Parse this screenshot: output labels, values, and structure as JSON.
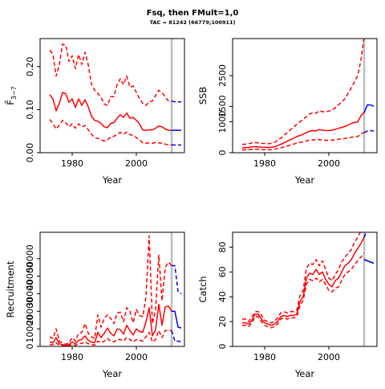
{
  "title": "Fsq, then FMult=1,0",
  "subtitle": "TAC = 81242 (66779;100911)",
  "colors": {
    "observed": "#ff0000",
    "forecast": "#0000ff",
    "divider": "#bebebe",
    "axis": "#000000"
  },
  "chart_data": [
    {
      "id": "fbar",
      "type": "line",
      "xlabel": "Year",
      "ylabel": "F̄",
      "ylabel_sub": "3−7",
      "xlim": [
        1970,
        2015
      ],
      "ylim": [
        0,
        0.265
      ],
      "xticks": [
        1980,
        2000
      ],
      "yticks": [
        0.0,
        0.1,
        0.2
      ],
      "ytick_labels": [
        "0.00",
        "0.10",
        "0.20"
      ],
      "divider_x": 2011,
      "observed": {
        "x": [
          1973,
          1974,
          1975,
          1976,
          1977,
          1978,
          1979,
          1980,
          1981,
          1982,
          1983,
          1984,
          1985,
          1986,
          1987,
          1988,
          1989,
          1990,
          1991,
          1992,
          1993,
          1994,
          1995,
          1996,
          1997,
          1998,
          1999,
          2000,
          2001,
          2002,
          2003,
          2004,
          2005,
          2006,
          2007,
          2008,
          2009,
          2010,
          2011
        ],
        "mid": [
          0.135,
          0.125,
          0.097,
          0.115,
          0.14,
          0.137,
          0.117,
          0.125,
          0.105,
          0.125,
          0.11,
          0.123,
          0.107,
          0.085,
          0.075,
          0.073,
          0.068,
          0.06,
          0.058,
          0.068,
          0.07,
          0.08,
          0.088,
          0.082,
          0.092,
          0.08,
          0.082,
          0.075,
          0.067,
          0.053,
          0.052,
          0.053,
          0.053,
          0.057,
          0.062,
          0.06,
          0.055,
          0.052,
          0.052
        ],
        "lower": [
          0.077,
          0.068,
          0.055,
          0.064,
          0.075,
          0.07,
          0.06,
          0.067,
          0.057,
          0.067,
          0.06,
          0.063,
          0.053,
          0.043,
          0.035,
          0.033,
          0.03,
          0.027,
          0.03,
          0.037,
          0.038,
          0.043,
          0.047,
          0.043,
          0.048,
          0.042,
          0.04,
          0.035,
          0.03,
          0.023,
          0.022,
          0.023,
          0.022,
          0.024,
          0.023,
          0.022,
          0.02,
          0.018,
          0.018
        ],
        "upper": [
          0.238,
          0.228,
          0.178,
          0.205,
          0.252,
          0.25,
          0.212,
          0.225,
          0.195,
          0.228,
          0.205,
          0.233,
          0.205,
          0.16,
          0.145,
          0.138,
          0.128,
          0.113,
          0.11,
          0.13,
          0.13,
          0.158,
          0.172,
          0.158,
          0.178,
          0.152,
          0.155,
          0.14,
          0.125,
          0.115,
          0.11,
          0.118,
          0.12,
          0.133,
          0.145,
          0.14,
          0.13,
          0.12,
          0.12
        ]
      },
      "forecast": {
        "x": [
          2011,
          2012,
          2013,
          2014
        ],
        "mid": [
          0.052,
          0.052,
          0.052,
          0.052
        ],
        "lower": [
          0.018,
          0.018,
          0.018,
          0.018
        ],
        "upper": [
          0.12,
          0.118,
          0.118,
          0.118
        ]
      }
    },
    {
      "id": "ssb",
      "type": "line",
      "xlabel": "Year",
      "ylabel": "SSB",
      "ylim": [
        0,
        3700
      ],
      "xlim": [
        1970,
        2015
      ],
      "xticks": [
        1980,
        2000
      ],
      "yticks": [
        0,
        1000,
        1500,
        2500
      ],
      "ytick_labels": [
        "0",
        "1000",
        "1500",
        "2500"
      ],
      "divider_x": 2011,
      "observed": {
        "x": [
          1973,
          1974,
          1975,
          1976,
          1977,
          1978,
          1979,
          1980,
          1981,
          1982,
          1983,
          1984,
          1985,
          1986,
          1987,
          1988,
          1989,
          1990,
          1991,
          1992,
          1993,
          1994,
          1995,
          1996,
          1997,
          1998,
          1999,
          2000,
          2001,
          2002,
          2003,
          2004,
          2005,
          2006,
          2007,
          2008,
          2009,
          2010,
          2011
        ],
        "mid": [
          160,
          165,
          170,
          190,
          195,
          190,
          180,
          175,
          170,
          175,
          190,
          230,
          270,
          320,
          370,
          420,
          470,
          520,
          560,
          600,
          650,
          700,
          720,
          700,
          750,
          730,
          720,
          720,
          730,
          760,
          790,
          820,
          850,
          900,
          950,
          980,
          1000,
          1200,
          1300
        ],
        "lower": [
          90,
          95,
          100,
          110,
          115,
          110,
          105,
          100,
          95,
          100,
          110,
          135,
          160,
          190,
          220,
          250,
          280,
          310,
          330,
          350,
          380,
          410,
          420,
          400,
          430,
          410,
          400,
          400,
          405,
          420,
          435,
          450,
          460,
          480,
          500,
          510,
          520,
          620,
          650
        ],
        "upper": [
          270,
          275,
          290,
          320,
          330,
          320,
          305,
          300,
          290,
          300,
          330,
          400,
          470,
          560,
          650,
          740,
          830,
          920,
          1000,
          1080,
          1170,
          1250,
          1300,
          1280,
          1360,
          1330,
          1330,
          1350,
          1380,
          1460,
          1550,
          1650,
          1750,
          1930,
          2100,
          2300,
          2500,
          3000,
          3750
        ]
      },
      "forecast": {
        "x": [
          2011,
          2012,
          2013,
          2014
        ],
        "mid": [
          1300,
          1550,
          1550,
          1500
        ],
        "lower": [
          650,
          700,
          720,
          700
        ],
        "upper": [
          3750,
          3850,
          3850,
          3850
        ]
      }
    },
    {
      "id": "recruitment",
      "type": "line",
      "xlabel": "Year",
      "ylabel": "Recruitment",
      "ylim": [
        0,
        65000
      ],
      "xlim": [
        1970,
        2015
      ],
      "xticks": [
        1980,
        2000
      ],
      "yticks": [
        0,
        10000,
        20000,
        30000,
        40000,
        50000
      ],
      "ytick_labels": [
        "0",
        "10000",
        "20000",
        "30000",
        "40000",
        "50000"
      ],
      "divider_x": 2011,
      "observed": {
        "x": [
          1973,
          1974,
          1975,
          1976,
          1977,
          1978,
          1979,
          1980,
          1981,
          1982,
          1983,
          1984,
          1985,
          1986,
          1987,
          1988,
          1989,
          1990,
          1991,
          1992,
          1993,
          1994,
          1995,
          1996,
          1997,
          1998,
          1999,
          2000,
          2001,
          2002,
          2003,
          2004,
          2005,
          2006,
          2007,
          2008,
          2009,
          2010,
          2011
        ],
        "mid": [
          2500,
          2000,
          5000,
          1500,
          1000,
          500,
          1000,
          2500,
          1500,
          3500,
          4000,
          6000,
          3500,
          2500,
          2000,
          8000,
          5000,
          7500,
          10500,
          7500,
          6000,
          10000,
          9500,
          7000,
          12000,
          9000,
          6500,
          10000,
          8500,
          8000,
          14000,
          22000,
          6000,
          9500,
          24000,
          12000,
          22500,
          23000,
          20000
        ],
        "lower": [
          1000,
          900,
          2000,
          600,
          400,
          200,
          400,
          1000,
          600,
          1500,
          1700,
          2500,
          1500,
          1000,
          800,
          3000,
          2000,
          3000,
          4500,
          3000,
          2500,
          4000,
          4000,
          3000,
          5000,
          4000,
          2500,
          4000,
          3500,
          3000,
          5500,
          8000,
          2500,
          4000,
          9000,
          5000,
          9000,
          9000,
          9000
        ],
        "upper": [
          5500,
          4500,
          10000,
          3000,
          2000,
          1200,
          2000,
          5000,
          3000,
          7500,
          8000,
          13000,
          7500,
          5500,
          4500,
          18000,
          11000,
          16000,
          18000,
          16000,
          13000,
          19000,
          19500,
          14000,
          22000,
          20000,
          13500,
          21000,
          17500,
          17000,
          28000,
          63000,
          13000,
          21000,
          52000,
          26000,
          45000,
          48000,
          46000
        ]
      },
      "forecast": {
        "x": [
          2011,
          2012,
          2013,
          2014
        ],
        "mid": [
          20000,
          20000,
          11000,
          10500
        ],
        "lower": [
          9000,
          3000,
          3000,
          2500
        ],
        "upper": [
          46000,
          46000,
          31000,
          30000
        ]
      }
    },
    {
      "id": "catch",
      "type": "line",
      "xlabel": "Year",
      "ylabel": "Catch",
      "ylim": [
        0,
        92
      ],
      "xlim": [
        1970,
        2015
      ],
      "xticks": [
        1980,
        2000
      ],
      "yticks": [
        0,
        20,
        40,
        60,
        80
      ],
      "ytick_labels": [
        "0",
        "20",
        "40",
        "60",
        "80"
      ],
      "divider_x": 2011,
      "observed": {
        "x": [
          1973,
          1974,
          1975,
          1976,
          1977,
          1978,
          1979,
          1980,
          1981,
          1982,
          1983,
          1984,
          1985,
          1986,
          1987,
          1988,
          1989,
          1990,
          1991,
          1992,
          1993,
          1994,
          1995,
          1996,
          1997,
          1998,
          1999,
          2000,
          2001,
          2002,
          2003,
          2004,
          2005,
          2006,
          2007,
          2008,
          2009,
          2010,
          2011
        ],
        "mid": [
          19,
          19,
          18,
          21,
          26,
          26,
          22,
          19,
          18,
          17,
          18,
          20,
          24,
          25,
          24,
          25,
          25,
          26,
          36,
          40,
          55,
          59,
          58,
          62,
          58,
          60,
          54,
          50,
          48,
          53,
          55,
          60,
          65,
          67,
          70,
          75,
          79,
          83,
          88
        ],
        "lower": [
          17,
          17,
          16,
          19,
          24,
          24,
          20,
          17,
          16,
          15,
          16,
          18,
          22,
          23,
          22,
          23,
          23,
          24,
          33,
          37,
          50,
          54,
          53,
          55,
          52,
          54,
          50,
          45,
          44,
          47,
          48,
          53,
          58,
          60,
          62,
          66,
          69,
          72,
          75
        ],
        "upper": [
          22,
          22,
          20,
          24,
          28,
          28,
          25,
          21,
          20,
          19,
          20,
          23,
          27,
          28,
          27,
          28,
          28,
          29,
          41,
          45,
          63,
          67,
          66,
          70,
          65,
          69,
          62,
          55,
          53,
          58,
          62,
          68,
          72,
          75,
          78,
          84,
          88,
          93,
          98
        ]
      },
      "forecast": {
        "x": [
          2011,
          2012,
          2013,
          2014
        ],
        "mid": [
          70,
          69,
          68,
          67
        ],
        "lower": [
          70,
          69,
          68,
          67
        ],
        "upper": [
          88,
          94,
          94,
          94
        ]
      }
    }
  ]
}
